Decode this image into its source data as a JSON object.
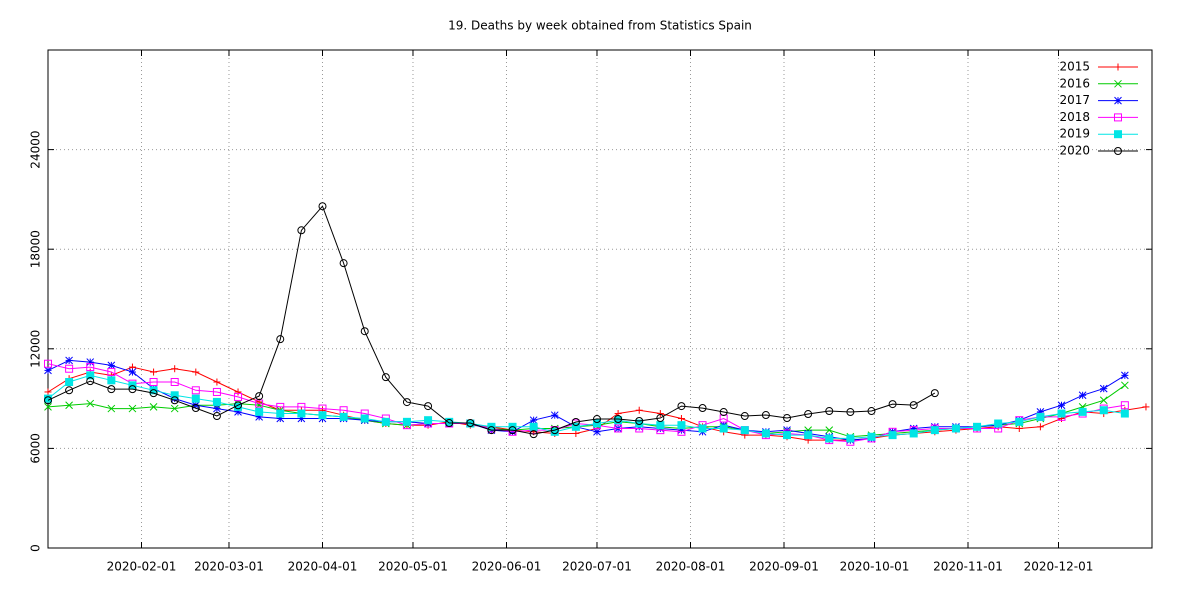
{
  "chart_data": {
    "type": "line",
    "title": "19. Deaths by week obtained from Statistics Spain",
    "x": [
      "2020-01-01",
      "2020-01-08",
      "2020-01-15",
      "2020-01-22",
      "2020-01-29",
      "2020-02-05",
      "2020-02-12",
      "2020-02-19",
      "2020-02-26",
      "2020-03-04",
      "2020-03-11",
      "2020-03-18",
      "2020-03-25",
      "2020-04-01",
      "2020-04-08",
      "2020-04-15",
      "2020-04-22",
      "2020-04-29",
      "2020-05-06",
      "2020-05-13",
      "2020-05-20",
      "2020-05-27",
      "2020-06-03",
      "2020-06-10",
      "2020-06-17",
      "2020-06-24",
      "2020-07-01",
      "2020-07-08",
      "2020-07-15",
      "2020-07-22",
      "2020-07-29",
      "2020-08-05",
      "2020-08-12",
      "2020-08-19",
      "2020-08-26",
      "2020-09-02",
      "2020-09-09",
      "2020-09-16",
      "2020-09-23",
      "2020-09-30",
      "2020-10-07",
      "2020-10-14",
      "2020-10-21",
      "2020-10-28",
      "2020-11-04",
      "2020-11-11",
      "2020-11-18",
      "2020-11-25",
      "2020-12-02",
      "2020-12-09",
      "2020-12-16",
      "2020-12-23",
      "2020-12-30"
    ],
    "xlim": [
      "2020-01-01",
      "2021-01-01"
    ],
    "xticks": [
      "2020-02-01",
      "2020-03-01",
      "2020-04-01",
      "2020-05-01",
      "2020-06-01",
      "2020-07-01",
      "2020-08-01",
      "2020-09-01",
      "2020-10-01",
      "2020-11-01",
      "2020-12-01"
    ],
    "ylim": [
      0,
      30000
    ],
    "yticks": [
      0,
      6000,
      12000,
      18000,
      24000
    ],
    "grid": true,
    "legend": "top-right",
    "series": [
      {
        "name": "2015",
        "color": "#ff0000",
        "marker": "plus",
        "values": [
          9400,
          10200,
          10600,
          10400,
          10900,
          10600,
          10800,
          10600,
          10000,
          9400,
          8800,
          8300,
          8300,
          8300,
          8000,
          7700,
          7500,
          7400,
          7400,
          7600,
          7400,
          7300,
          7100,
          7000,
          6900,
          6900,
          7200,
          8100,
          8300,
          8100,
          7800,
          7300,
          7000,
          6800,
          6800,
          6700,
          6500,
          6500,
          6500,
          6600,
          6800,
          6900,
          7000,
          7100,
          7200,
          7300,
          7200,
          7300,
          7800,
          8200,
          8100,
          8300,
          8500
        ]
      },
      {
        "name": "2016",
        "color": "#00cc00",
        "marker": "cross",
        "values": [
          8500,
          8600,
          8700,
          8400,
          8400,
          8500,
          8400,
          8600,
          8600,
          8700,
          8600,
          8300,
          8100,
          8000,
          7900,
          7700,
          7500,
          7400,
          7500,
          7500,
          7500,
          7200,
          7100,
          7200,
          7200,
          7300,
          7400,
          7600,
          7500,
          7300,
          7200,
          7300,
          7300,
          7100,
          6900,
          7000,
          7100,
          7100,
          6700,
          6800,
          6900,
          7000,
          7100,
          7200,
          7300,
          7400,
          7500,
          7800,
          8100,
          8500,
          8900,
          9800,
          null
        ]
      },
      {
        "name": "2017",
        "color": "#0000ff",
        "marker": "star",
        "values": [
          10700,
          11300,
          11200,
          11000,
          10600,
          9600,
          9000,
          8600,
          8400,
          8200,
          7900,
          7800,
          7800,
          7800,
          7800,
          7700,
          7600,
          7600,
          7500,
          7500,
          7500,
          7100,
          7000,
          7700,
          8000,
          7300,
          7000,
          7200,
          7300,
          7200,
          7100,
          7000,
          7400,
          7100,
          7000,
          7100,
          6900,
          6700,
          6500,
          6600,
          7000,
          7200,
          7300,
          7300,
          7300,
          7400,
          7700,
          8200,
          8600,
          9200,
          9600,
          10400,
          null
        ]
      },
      {
        "name": "2018",
        "color": "#ff00ff",
        "marker": "square",
        "values": [
          11100,
          10800,
          10900,
          10600,
          9900,
          10000,
          10000,
          9500,
          9400,
          9100,
          8700,
          8500,
          8500,
          8400,
          8300,
          8100,
          7800,
          7400,
          7500,
          7500,
          7500,
          7200,
          7000,
          7100,
          7100,
          7500,
          7400,
          7200,
          7200,
          7100,
          7000,
          7400,
          7800,
          7100,
          6800,
          6900,
          6800,
          6500,
          6400,
          6600,
          7000,
          7100,
          7200,
          7200,
          7200,
          7200,
          7700,
          7900,
          7900,
          8100,
          8400,
          8600,
          null
        ]
      },
      {
        "name": "2019",
        "color": "#00e5e5",
        "marker": "filled-square",
        "values": [
          9000,
          10000,
          10400,
          10100,
          9800,
          9500,
          9200,
          9000,
          8800,
          8500,
          8200,
          8100,
          8100,
          8000,
          7900,
          7800,
          7600,
          7600,
          7700,
          7600,
          7500,
          7300,
          7300,
          7300,
          7000,
          7300,
          7500,
          7700,
          7500,
          7400,
          7400,
          7200,
          7200,
          7100,
          6900,
          6800,
          6800,
          6600,
          6600,
          6700,
          6800,
          6900,
          7100,
          7200,
          7300,
          7500,
          7600,
          7900,
          8100,
          8200,
          8300,
          8100,
          null
        ]
      },
      {
        "name": "2020",
        "color": "#000000",
        "marker": "circle",
        "values": [
          8900,
          9500,
          10050,
          9570,
          9570,
          9330,
          8900,
          8430,
          7950,
          8600,
          9150,
          12580,
          19140,
          20590,
          17160,
          13060,
          10290,
          8790,
          8550,
          7530,
          7530,
          7100,
          7100,
          6860,
          7100,
          7590,
          7770,
          7770,
          7650,
          7830,
          8550,
          8430,
          8190,
          7950,
          8010,
          7830,
          8070,
          8250,
          8190,
          8250,
          8670,
          8610,
          9330,
          null,
          null,
          null,
          null,
          null,
          null,
          null,
          null,
          null,
          null
        ]
      }
    ]
  }
}
